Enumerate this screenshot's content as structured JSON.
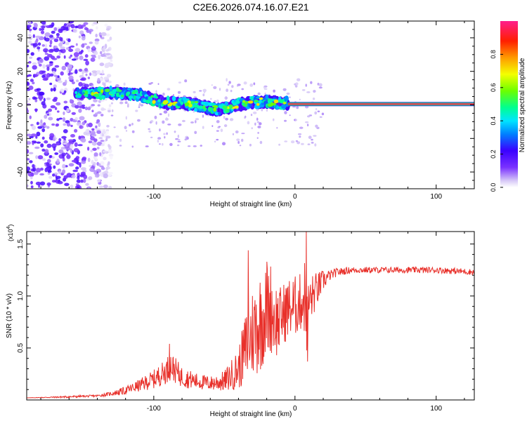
{
  "page_title": "C2E6.2026.074.16.07.E21",
  "chart_data": [
    {
      "type": "heatmap",
      "xlabel": "Height of straight line (km)",
      "ylabel": "Frequency (Hz)",
      "xlim": [
        -190,
        127
      ],
      "ylim": [
        -50,
        50
      ],
      "x_ticks": [
        -100,
        0,
        100
      ],
      "x_tick_labels": [
        "-100",
        "0",
        "100"
      ],
      "y_ticks": [
        -40,
        -20,
        0,
        20,
        40
      ],
      "y_tick_labels": [
        "-40",
        "-20",
        "0",
        "20",
        "40"
      ],
      "colorbar": {
        "label": "Normalized spectral amplitude",
        "range": [
          0,
          1
        ],
        "ticks": [
          0.0,
          0.2,
          0.4,
          0.6,
          0.8
        ],
        "tick_labels": [
          "0.0",
          "0.2",
          "0.4",
          "0.6",
          "0.8"
        ]
      },
      "ridge": {
        "x": [
          -155,
          -140,
          -125,
          -110,
          -100,
          -90,
          -80,
          -70,
          -60,
          -55,
          -45,
          -35,
          -25,
          -20,
          -10,
          -5,
          0,
          5,
          10,
          20,
          127
        ],
        "freq": [
          7,
          7,
          7,
          6,
          3,
          1,
          1,
          0,
          -2,
          -3,
          -1,
          1,
          2,
          2,
          1,
          1,
          3,
          2,
          1,
          0.5,
          0.5
        ]
      },
      "line_region": {
        "x_range": [
          -5,
          127
        ],
        "freq": 0.5,
        "amplitude": 0.95
      },
      "noise_region": {
        "x_range": [
          -190,
          -130
        ],
        "freq_range": [
          -50,
          50
        ],
        "amplitude": 0.12
      }
    },
    {
      "type": "line",
      "title": "",
      "xlabel": "Height of straight line (km)",
      "ylabel": "SNR (10 * v/v)",
      "multiplier_label": "(x10",
      "multiplier_exp": "4",
      "xlim": [
        -190,
        127
      ],
      "ylim": [
        0,
        1.62
      ],
      "x_ticks": [
        -100,
        0,
        100
      ],
      "x_tick_labels": [
        "-100",
        "0",
        "100"
      ],
      "y_ticks": [
        0.5,
        1.0,
        1.5
      ],
      "y_tick_labels": [
        "0.5",
        "1.0",
        "1.5"
      ],
      "series": [
        {
          "name": "SNR",
          "color": "#e8302a",
          "x": [
            -190,
            -160,
            -140,
            -130,
            -120,
            -110,
            -100,
            -92,
            -88,
            -80,
            -70,
            -60,
            -50,
            -40,
            -35,
            -30,
            -25,
            -20,
            -17,
            -15,
            -12,
            -10,
            -7,
            -5,
            0,
            5,
            7,
            8,
            10,
            15,
            20,
            25,
            30,
            40,
            60,
            80,
            100,
            127
          ],
          "y": [
            0.02,
            0.03,
            0.04,
            0.06,
            0.09,
            0.14,
            0.2,
            0.27,
            0.33,
            0.22,
            0.18,
            0.16,
            0.18,
            0.3,
            0.5,
            0.65,
            0.75,
            0.85,
            0.9,
            0.8,
            0.75,
            0.8,
            0.85,
            0.88,
            0.9,
            0.95,
            1.0,
            0.7,
            0.95,
            1.05,
            1.15,
            1.2,
            1.23,
            1.25,
            1.25,
            1.25,
            1.25,
            1.23
          ],
          "noise_amplitude": [
            0.0,
            0.01,
            0.01,
            0.02,
            0.04,
            0.06,
            0.09,
            0.12,
            0.14,
            0.1,
            0.08,
            0.07,
            0.1,
            0.2,
            0.35,
            0.45,
            0.5,
            0.45,
            0.45,
            0.4,
            0.35,
            0.3,
            0.3,
            0.3,
            0.3,
            0.28,
            0.4,
            0.3,
            0.25,
            0.18,
            0.1,
            0.05,
            0.04,
            0.03,
            0.03,
            0.03,
            0.03,
            0.03
          ],
          "annotated_peaks": [
            {
              "x": -89,
              "y": 0.54
            },
            {
              "x": -33,
              "y": 1.44
            },
            {
              "x": -20,
              "y": 1.33
            },
            {
              "x": 8,
              "y": 1.62
            },
            {
              "x": 9,
              "y": 0.37
            }
          ]
        }
      ]
    }
  ]
}
